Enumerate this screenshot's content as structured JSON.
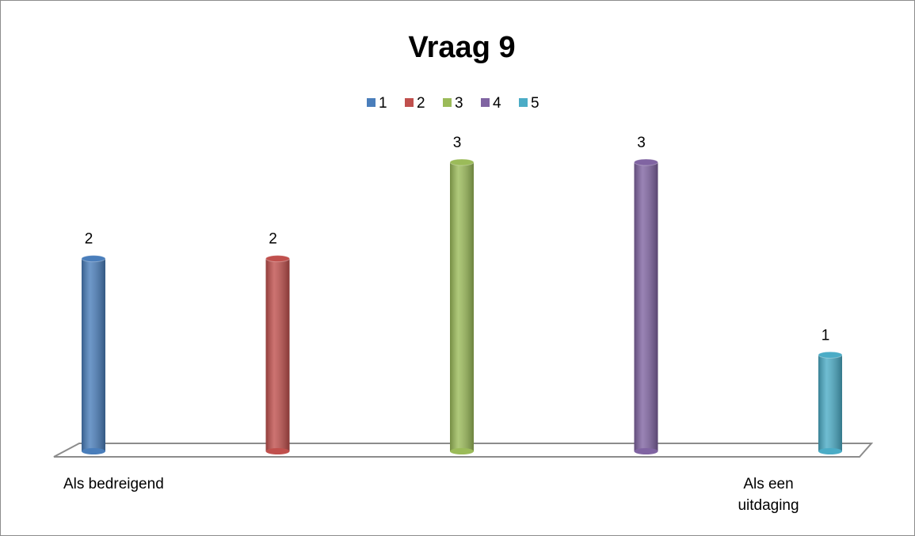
{
  "chart_data": {
    "type": "bar",
    "title": "Vraag 9",
    "series": [
      {
        "name": "1",
        "color": "#4a7ebb",
        "values": [
          2
        ]
      },
      {
        "name": "2",
        "color": "#c0504d",
        "values": [
          2
        ]
      },
      {
        "name": "3",
        "color": "#9bbb59",
        "values": [
          3
        ]
      },
      {
        "name": "4",
        "color": "#8064a2",
        "values": [
          3
        ]
      },
      {
        "name": "5",
        "color": "#4bacc6",
        "values": [
          1
        ]
      }
    ],
    "annotations": [
      "Als bedreigend",
      "Als een uitdaging"
    ],
    "legend": "top"
  }
}
